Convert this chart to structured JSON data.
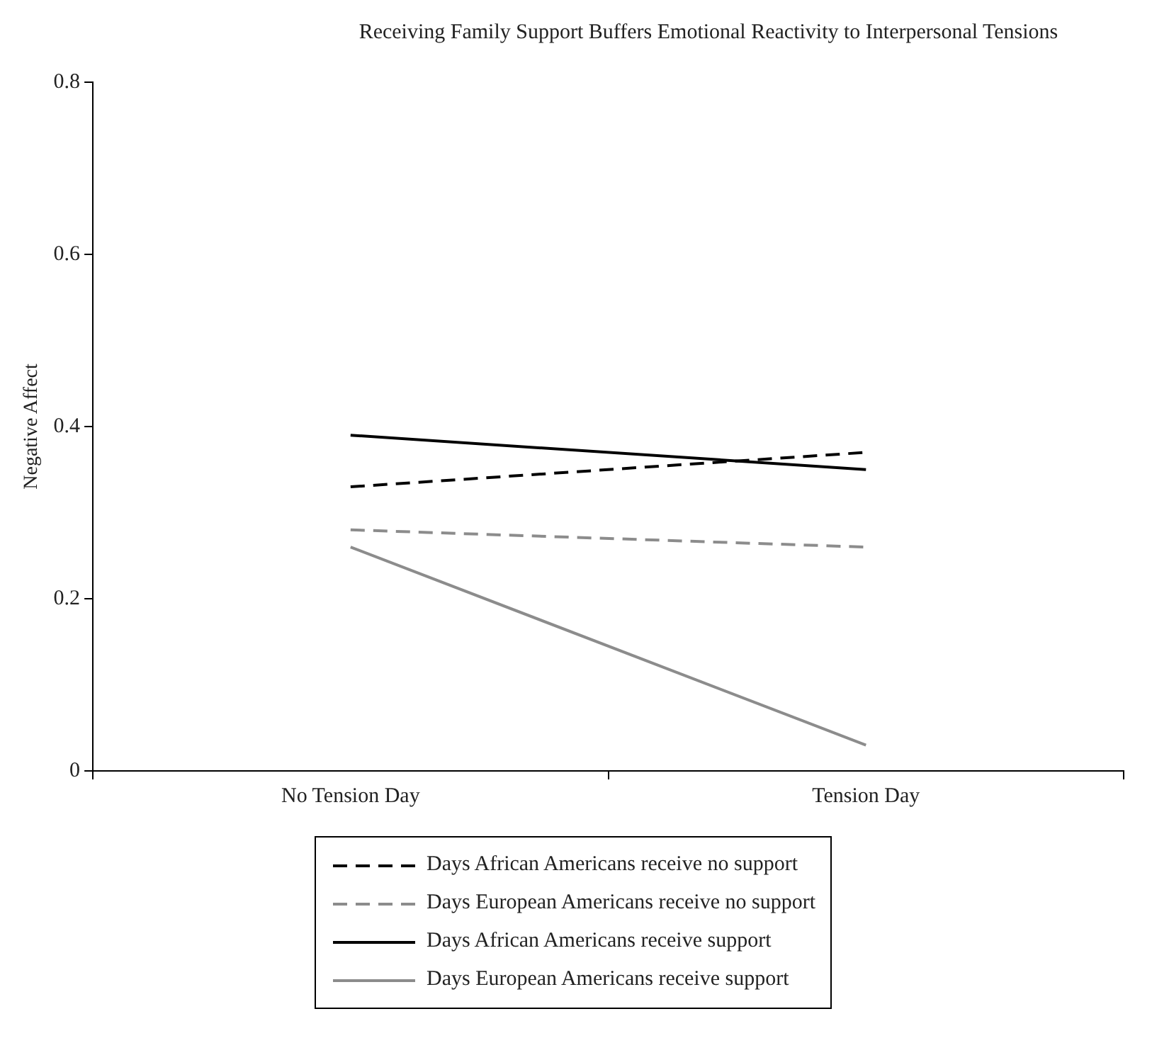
{
  "chart_data": {
    "type": "line",
    "title": "Receiving Family Support Buffers Emotional Reactivity to Interpersonal Tensions",
    "ylabel": "Negative Affect",
    "categories": [
      "No Tension Day",
      "Tension Day"
    ],
    "series": [
      {
        "name": "Days African Americans receive no support",
        "color": "#000000",
        "line_style": "dashed",
        "values": [
          0.33,
          0.37
        ]
      },
      {
        "name": "Days European Americans receive no support",
        "color": "#8c8c8c",
        "line_style": "dashed",
        "values": [
          0.28,
          0.26
        ]
      },
      {
        "name": "Days African Americans receive support",
        "color": "#000000",
        "line_style": "solid",
        "values": [
          0.39,
          0.35
        ]
      },
      {
        "name": "Days European Americans receive support",
        "color": "#8c8c8c",
        "line_style": "solid",
        "values": [
          0.26,
          0.03
        ]
      }
    ],
    "ylim": [
      0,
      0.8
    ],
    "yticks": [
      0,
      0.2,
      0.4,
      0.6,
      0.8
    ],
    "grid": false,
    "legend": "bottom",
    "marker": "none"
  }
}
